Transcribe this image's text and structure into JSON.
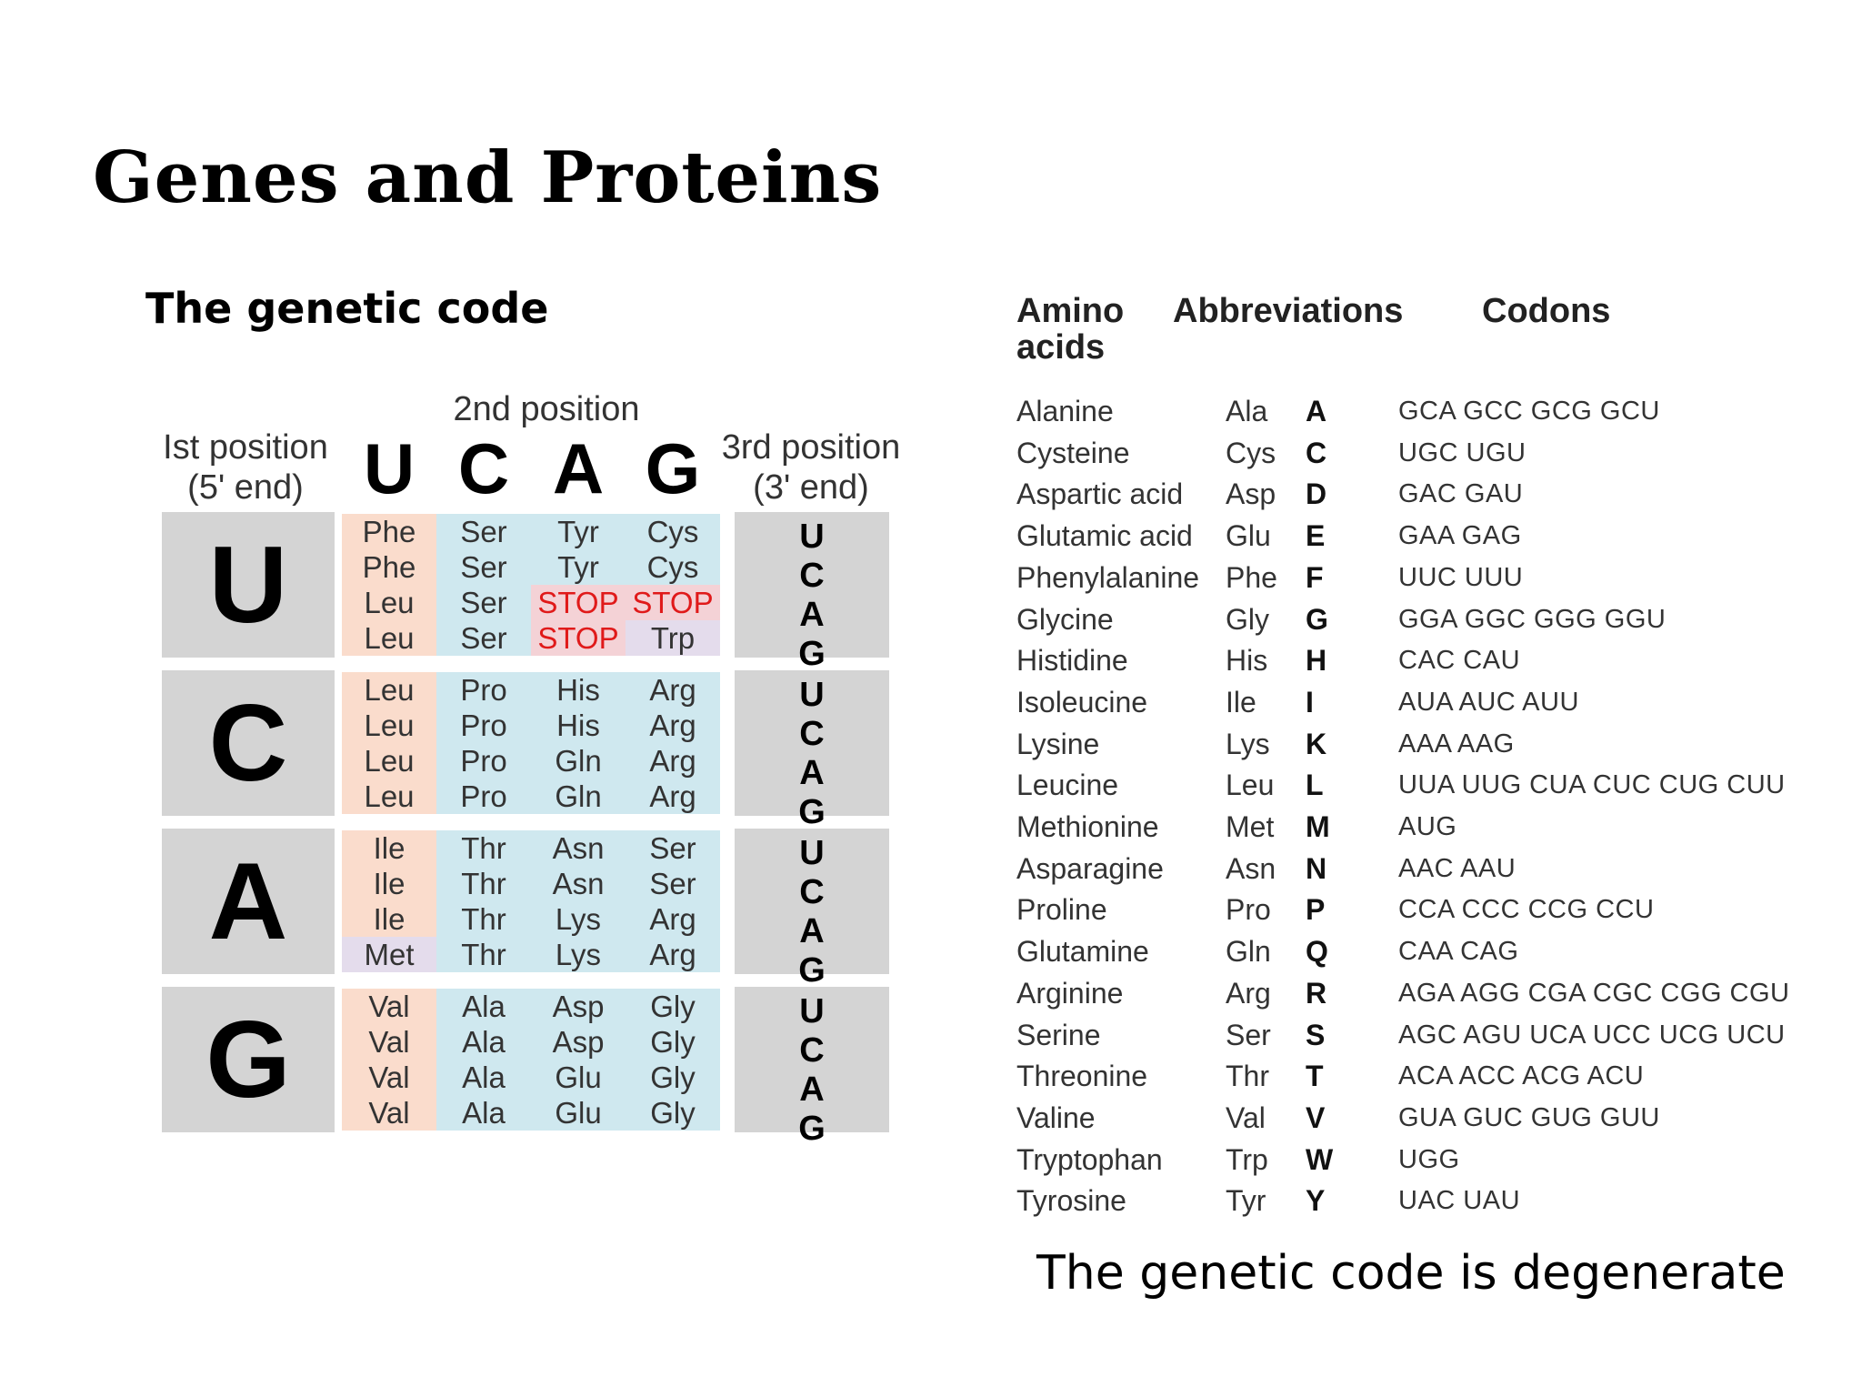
{
  "title": "Genes and Proteins",
  "subtitle": "The genetic code",
  "caption": "The genetic code is degenerate",
  "code_table": {
    "second_position_label": "2nd position",
    "first_position_label": [
      "Ist position",
      "(5' end)"
    ],
    "third_position_label": [
      "3rd position",
      "(3' end)"
    ],
    "bases": [
      "U",
      "C",
      "A",
      "G"
    ],
    "rows": [
      {
        "first": "U",
        "cells": [
          [
            "Phe",
            "Phe",
            "Leu",
            "Leu"
          ],
          [
            "Ser",
            "Ser",
            "Ser",
            "Ser"
          ],
          [
            "Tyr",
            "Tyr",
            "STOP",
            "STOP"
          ],
          [
            "Cys",
            "Cys",
            "STOP",
            "Trp"
          ]
        ]
      },
      {
        "first": "C",
        "cells": [
          [
            "Leu",
            "Leu",
            "Leu",
            "Leu"
          ],
          [
            "Pro",
            "Pro",
            "Pro",
            "Pro"
          ],
          [
            "His",
            "His",
            "Gln",
            "Gln"
          ],
          [
            "Arg",
            "Arg",
            "Arg",
            "Arg"
          ]
        ]
      },
      {
        "first": "A",
        "cells": [
          [
            "Ile",
            "Ile",
            "Ile",
            "Met"
          ],
          [
            "Thr",
            "Thr",
            "Thr",
            "Thr"
          ],
          [
            "Asn",
            "Asn",
            "Lys",
            "Lys"
          ],
          [
            "Ser",
            "Ser",
            "Arg",
            "Arg"
          ]
        ]
      },
      {
        "first": "G",
        "cells": [
          [
            "Val",
            "Val",
            "Val",
            "Val"
          ],
          [
            "Ala",
            "Ala",
            "Ala",
            "Ala"
          ],
          [
            "Asp",
            "Asp",
            "Glu",
            "Glu"
          ],
          [
            "Gly",
            "Gly",
            "Gly",
            "Gly"
          ]
        ]
      }
    ],
    "colors": {
      "gray": "#d4d4d4",
      "pink": "#fadccc",
      "blue": "#cfe8ef",
      "lavender": "#e4dcec",
      "stop": "#e01a1a"
    }
  },
  "amino_list": {
    "headers": {
      "amino_line1": "Amino",
      "amino_line2": "acids",
      "abbreviations": "Abbreviations",
      "codons": "Codons"
    },
    "rows": [
      {
        "name": "Alanine",
        "abbr": "Ala",
        "one": "A",
        "codons": "GCA GCC GCG GCU"
      },
      {
        "name": "Cysteine",
        "abbr": "Cys",
        "one": "C",
        "codons": "UGC UGU"
      },
      {
        "name": "Aspartic acid",
        "abbr": "Asp",
        "one": "D",
        "codons": "GAC GAU"
      },
      {
        "name": "Glutamic acid",
        "abbr": "Glu",
        "one": "E",
        "codons": "GAA GAG"
      },
      {
        "name": "Phenylalanine",
        "abbr": "Phe",
        "one": "F",
        "codons": "UUC UUU"
      },
      {
        "name": "Glycine",
        "abbr": "Gly",
        "one": "G",
        "codons": "GGA GGC GGG GGU"
      },
      {
        "name": "Histidine",
        "abbr": "His",
        "one": "H",
        "codons": "CAC CAU"
      },
      {
        "name": "Isoleucine",
        "abbr": "Ile",
        "one": "I",
        "codons": "AUA AUC AUU"
      },
      {
        "name": "Lysine",
        "abbr": "Lys",
        "one": "K",
        "codons": "AAA AAG"
      },
      {
        "name": "Leucine",
        "abbr": "Leu",
        "one": "L",
        "codons": "UUA UUG CUA CUC CUG CUU"
      },
      {
        "name": "Methionine",
        "abbr": "Met",
        "one": "M",
        "codons": "AUG"
      },
      {
        "name": "Asparagine",
        "abbr": "Asn",
        "one": "N",
        "codons": "AAC AAU"
      },
      {
        "name": "Proline",
        "abbr": "Pro",
        "one": "P",
        "codons": "CCA CCC CCG CCU"
      },
      {
        "name": "Glutamine",
        "abbr": "Gln",
        "one": "Q",
        "codons": "CAA CAG"
      },
      {
        "name": "Arginine",
        "abbr": "Arg",
        "one": "R",
        "codons": "AGA AGG CGA CGC CGG CGU"
      },
      {
        "name": "Serine",
        "abbr": "Ser",
        "one": "S",
        "codons": "AGC AGU UCA UCC UCG UCU"
      },
      {
        "name": "Threonine",
        "abbr": "Thr",
        "one": "T",
        "codons": "ACA ACC ACG ACU"
      },
      {
        "name": "Valine",
        "abbr": "Val",
        "one": "V",
        "codons": "GUA GUC GUG GUU"
      },
      {
        "name": "Tryptophan",
        "abbr": "Trp",
        "one": "W",
        "codons": "UGG"
      },
      {
        "name": "Tyrosine",
        "abbr": "Tyr",
        "one": "Y",
        "codons": "UAC UAU"
      }
    ]
  }
}
